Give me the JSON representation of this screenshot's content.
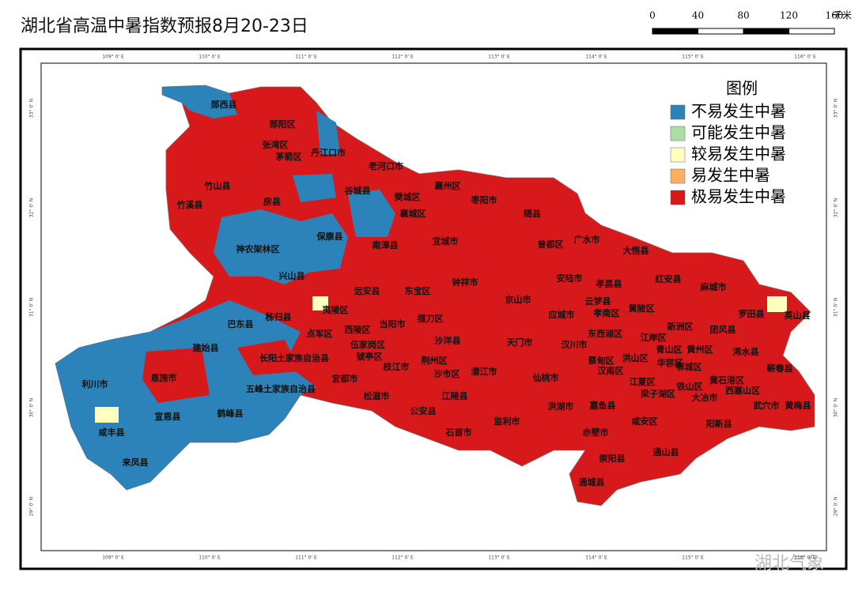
{
  "title": "湖北省高温中暑指数预报8月20-23日",
  "scale_bar": {
    "labels": [
      0,
      40,
      80,
      120,
      160
    ],
    "unit": "千米"
  },
  "legend": {
    "title": "图例",
    "items": [
      {
        "label": "不易发生中暑",
        "color": "#2b83ba"
      },
      {
        "label": "可能发生中暑",
        "color": "#abdda4"
      },
      {
        "label": "较易发生中暑",
        "color": "#ffffbf"
      },
      {
        "label": "易发生中暑",
        "color": "#fdae61"
      },
      {
        "label": "极易发生中暑",
        "color": "#d7191c"
      }
    ]
  },
  "graticule": {
    "longitudes": [
      "109° 0' E",
      "110° 0' E",
      "111° 0' E",
      "112° 0' E",
      "113° 0' E",
      "114° 0' E",
      "115° 0' E",
      "116° 0' E"
    ],
    "latitudes": [
      "33° 0' N",
      "32° 0' N",
      "31° 0' N",
      "30° 0' N",
      "29° 0' N"
    ]
  },
  "place_labels": [
    "郧西县",
    "郧阳区",
    "张湾区",
    "茅箭区",
    "丹江口市",
    "老河口市",
    "竹山县",
    "谷城县",
    "樊城区",
    "襄州区",
    "枣阳市",
    "竹溪县",
    "房县",
    "襄城区",
    "随县",
    "保康县",
    "南漳县",
    "宜城市",
    "曾都区",
    "广水市",
    "大悟县",
    "神农架林区",
    "兴山县",
    "远安县",
    "东宝区",
    "钟祥市",
    "安陆市",
    "孝昌县",
    "红安县",
    "麻城市",
    "京山市",
    "云梦县",
    "黄陂区",
    "夷陵区",
    "秭归县",
    "巴东县",
    "应城市",
    "孝南区",
    "罗田县",
    "英山县",
    "西陵区",
    "当阳市",
    "掇刀区",
    "点军区",
    "新洲区",
    "团风县",
    "东西湖区",
    "江岸区",
    "建始县",
    "长阳土家族自治县",
    "伍家岗区",
    "沙洋县",
    "天门市",
    "汉川市",
    "青山区",
    "黄州区",
    "浠水县",
    "猇亭区",
    "荆州区",
    "蔡甸区",
    "洪山区",
    "华容区",
    "恩施市",
    "枝江市",
    "沙市区",
    "潜江市",
    "汉南区",
    "鄂城区",
    "蕲春县",
    "利川市",
    "宜都市",
    "仙桃市",
    "江夏区",
    "黄石港区",
    "铁山区",
    "西塞山区",
    "五峰土家族自治县",
    "松滋市",
    "江陵县",
    "梁子湖区",
    "大冶市",
    "武穴市",
    "黄梅县",
    "宣恩县",
    "鹤峰县",
    "公安县",
    "洪湖市",
    "嘉鱼县",
    "咸安区",
    "阳新县",
    "咸丰县",
    "石首市",
    "监利市",
    "赤壁市",
    "崇阳县",
    "通山县",
    "来凤县",
    "通城县"
  ],
  "watermark": "湖北气象"
}
